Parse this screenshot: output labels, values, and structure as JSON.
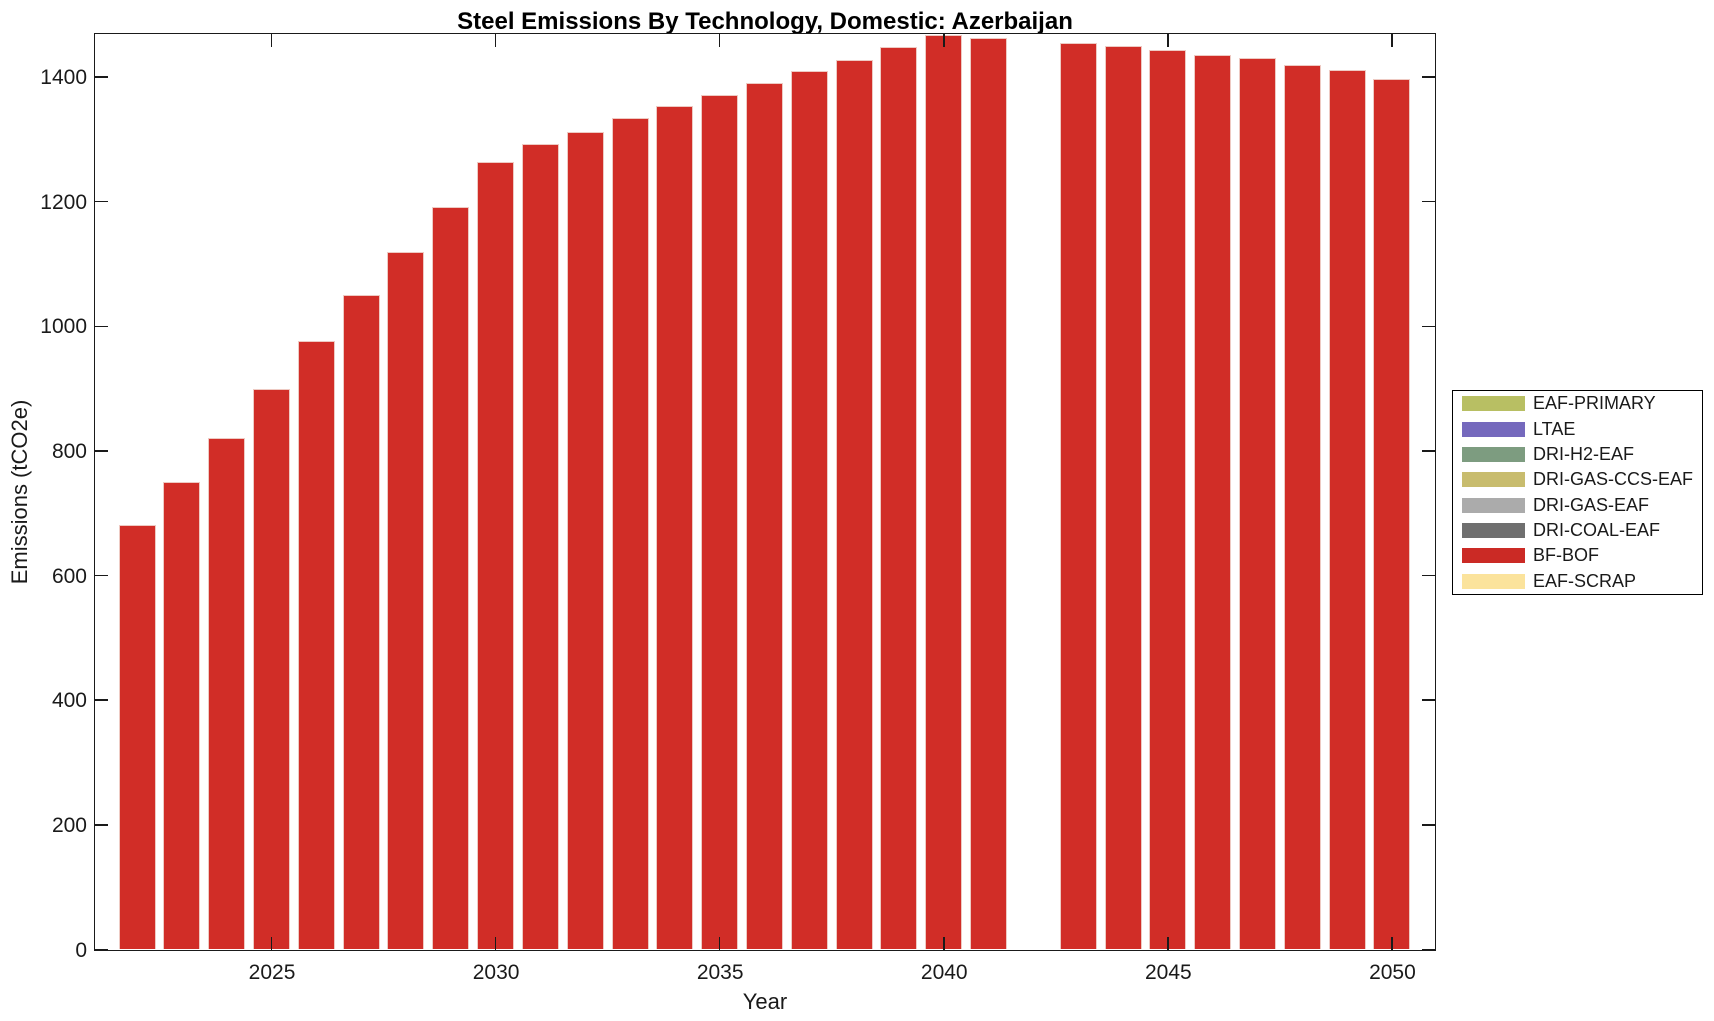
{
  "chart_data": {
    "type": "bar",
    "title": "Steel Emissions By Technology, Domestic: Azerbaijan",
    "xlabel": "Year",
    "ylabel": "Emissions (tCO2e)",
    "x": [
      2022,
      2023,
      2024,
      2025,
      2026,
      2027,
      2028,
      2029,
      2030,
      2031,
      2032,
      2033,
      2034,
      2035,
      2036,
      2037,
      2038,
      2039,
      2040,
      2041,
      2042,
      2043,
      2044,
      2045,
      2046,
      2047,
      2048,
      2049,
      2050
    ],
    "series": [
      {
        "name": "BF-BOF",
        "color": "#d12d27",
        "values": [
          681,
          750,
          821,
          899,
          977,
          1050,
          1120,
          1192,
          1264,
          1292,
          1312,
          1334,
          1353,
          1372,
          1390,
          1410,
          1428,
          1448,
          1467,
          1462,
          null,
          1454,
          1450,
          1443,
          1436,
          1430,
          1419,
          1411,
          1397
        ]
      }
    ],
    "xticks": [
      2025,
      2030,
      2035,
      2040,
      2045,
      2050
    ],
    "yticks": [
      0,
      200,
      400,
      600,
      800,
      1000,
      1200,
      1400
    ],
    "xlim": [
      2021.05,
      2050.95
    ],
    "ylim": [
      0,
      1470
    ],
    "grid": false,
    "bar_width_fraction": 0.82,
    "bar_edge_color": "#eecac3",
    "legend": {
      "position": "right-outside",
      "entries": [
        {
          "label": "EAF-PRIMARY",
          "color": "#b8bf63"
        },
        {
          "label": "LTAE",
          "color": "#7569bd"
        },
        {
          "label": "DRI-H2-EAF",
          "color": "#7d9c80"
        },
        {
          "label": "DRI-GAS-CCS-EAF",
          "color": "#c8bc6e"
        },
        {
          "label": "DRI-GAS-EAF",
          "color": "#ababab"
        },
        {
          "label": "DRI-COAL-EAF",
          "color": "#6f6f6f"
        },
        {
          "label": "BF-BOF",
          "color": "#cb2a25"
        },
        {
          "label": "EAF-SCRAP",
          "color": "#fbe39c"
        }
      ]
    }
  }
}
